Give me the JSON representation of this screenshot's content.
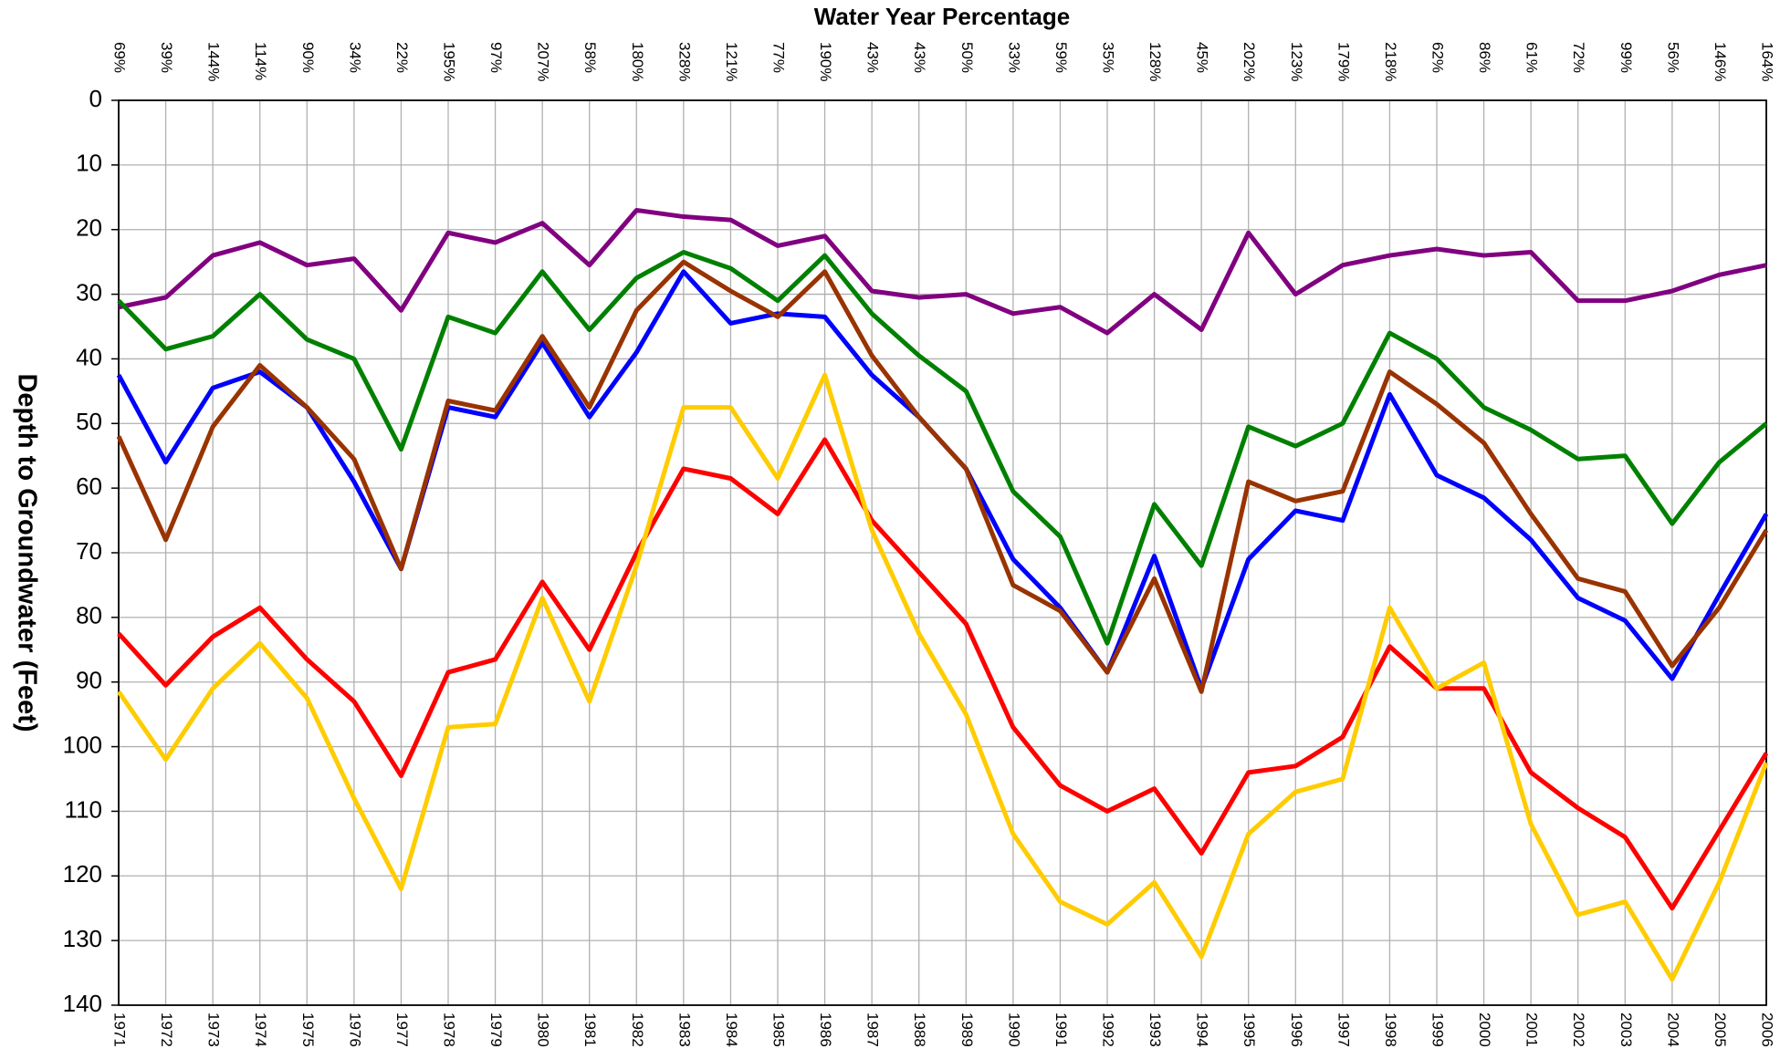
{
  "chart_data": {
    "type": "line",
    "title": "Water Year Percentage",
    "y_label": "Depth to Groundwater (Feet)",
    "categories": [
      "1971",
      "1972",
      "1973",
      "1974",
      "1975",
      "1976",
      "1977",
      "1978",
      "1979",
      "1980",
      "1981",
      "1982",
      "1983",
      "1984",
      "1985",
      "1986",
      "1987",
      "1988",
      "1989",
      "1990",
      "1991",
      "1992",
      "1993",
      "1994",
      "1995",
      "1996",
      "1997",
      "1998",
      "1999",
      "2000",
      "2001",
      "2002",
      "2003",
      "2004",
      "2005",
      "2006"
    ],
    "top_categories": [
      "69%",
      "39%",
      "144%",
      "114%",
      "90%",
      "34%",
      "22%",
      "195%",
      "97%",
      "207%",
      "58%",
      "180%",
      "328%",
      "121%",
      "77%",
      "190%",
      "43%",
      "43%",
      "50%",
      "33%",
      "59%",
      "35%",
      "128%",
      "45%",
      "202%",
      "123%",
      "179%",
      "218%",
      "62%",
      "86%",
      "61%",
      "72%",
      "99%",
      "56%",
      "146%",
      "164%"
    ],
    "ylim": [
      0,
      140
    ],
    "yticks": [
      0,
      10,
      20,
      30,
      40,
      50,
      60,
      70,
      80,
      90,
      100,
      110,
      120,
      130,
      140
    ],
    "y_inverted": true,
    "grid": true,
    "series": [
      {
        "color": "#800080",
        "values": [
          32,
          30.5,
          24,
          22,
          25.5,
          24.5,
          32.5,
          20.5,
          22,
          19,
          25.5,
          17,
          18,
          18.5,
          22.5,
          21,
          29.5,
          30.5,
          30,
          33,
          32,
          36,
          30,
          35.5,
          20.5,
          30,
          25.5,
          24,
          23,
          24,
          23.5,
          31,
          31,
          29.5,
          27,
          25.5
        ]
      },
      {
        "color": "#008000",
        "values": [
          31,
          38.5,
          36.5,
          30,
          37,
          40,
          54,
          33.5,
          36,
          26.5,
          35.5,
          27.5,
          23.5,
          26,
          31,
          24,
          33,
          39.5,
          45,
          60.5,
          67.5,
          84,
          62.5,
          72,
          50.5,
          53.5,
          50,
          36,
          40,
          47.5,
          51,
          55.5,
          55,
          65.5,
          56,
          50
        ]
      },
      {
        "color": "#0000ff",
        "values": [
          42.5,
          56,
          44.5,
          42,
          47.5,
          59,
          72.5,
          47.5,
          49,
          37.5,
          49,
          39,
          26.5,
          34.5,
          33,
          33.5,
          42.5,
          49,
          57,
          71,
          78.5,
          88.5,
          70.5,
          91,
          71,
          63.5,
          65,
          45.5,
          58,
          61.5,
          68,
          77,
          80.5,
          89.5,
          76.5,
          64
        ]
      },
      {
        "color": "#993300",
        "values": [
          52,
          68,
          50.5,
          41,
          47.5,
          55.5,
          72.5,
          46.5,
          48,
          36.5,
          47.5,
          32.5,
          25,
          29.5,
          33.5,
          26.5,
          39.5,
          49,
          57,
          75,
          79,
          88.5,
          74,
          91.5,
          59,
          62,
          60.5,
          42,
          47,
          53,
          64,
          74,
          76,
          87.5,
          78.5,
          66.5
        ]
      },
      {
        "color": "#ff0000",
        "values": [
          82.5,
          90.5,
          83,
          78.5,
          86.5,
          93,
          104.5,
          88.5,
          86.5,
          74.5,
          85,
          70,
          57,
          58.5,
          64,
          52.5,
          65,
          73,
          81,
          97,
          106,
          110,
          106.5,
          116.5,
          104,
          103,
          98.5,
          84.5,
          91,
          91,
          104,
          109.5,
          114,
          125,
          113,
          101
        ]
      },
      {
        "color": "#ffcc00",
        "values": [
          91.5,
          102,
          91,
          84,
          92.5,
          108,
          122,
          97,
          96.5,
          77,
          93,
          72,
          47.5,
          47.5,
          58.5,
          42.5,
          66.5,
          82.5,
          95,
          113.5,
          124,
          127.5,
          121,
          132.5,
          113.5,
          107,
          105,
          78.5,
          91,
          87,
          112,
          126,
          124,
          136,
          121,
          102.5
        ]
      }
    ]
  }
}
